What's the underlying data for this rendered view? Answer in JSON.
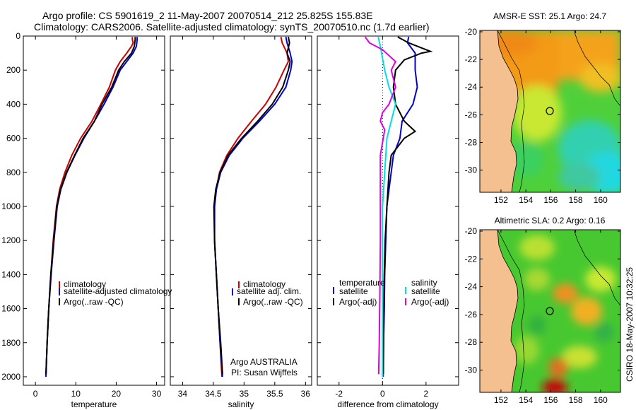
{
  "header": {
    "line1": "Argo profile: CS 5901619_2 11-May-2007 20070514_212 25.825S 155.83E",
    "line2": "Climatology: CARS2006. Satellite-adjusted climatology: synTS_20070510.nc (1.7d earlier)"
  },
  "footer": {
    "agency": "Argo AUSTRALIA",
    "pi": "PI: Susan Wijffels",
    "stamp": "CSIRO 18-May-2007 10:32:25"
  },
  "colors": {
    "climatology": "#d00000",
    "satellite": "#0000d0",
    "argo": "#000000",
    "salinity_sat": "#00e0e0",
    "salinity_argo": "#e000e0"
  },
  "chart_data": [
    {
      "type": "line",
      "id": "temperature",
      "xlabel": "temperature",
      "xlim": [
        -3,
        32
      ],
      "ylim": [
        2050,
        0
      ],
      "y_reversed": true,
      "xticks": [
        0,
        10,
        20,
        30
      ],
      "yticks": [
        0,
        200,
        400,
        600,
        800,
        1000,
        1200,
        1400,
        1600,
        1800,
        2000
      ],
      "legend": [
        "climatology",
        "satellite-adjusted climatology",
        "Argo(..raw -QC)"
      ],
      "series": [
        {
          "name": "climatology",
          "color": "#d00000",
          "points": [
            [
              24.0,
              5
            ],
            [
              24.0,
              20
            ],
            [
              24.2,
              40
            ],
            [
              23.8,
              60
            ],
            [
              22.6,
              100
            ],
            [
              21.0,
              150
            ],
            [
              19.8,
              200
            ],
            [
              18.3,
              300
            ],
            [
              16.2,
              400
            ],
            [
              14.0,
              500
            ],
            [
              11.2,
              600
            ],
            [
              9.0,
              700
            ],
            [
              7.3,
              800
            ],
            [
              6.0,
              900
            ],
            [
              5.2,
              1000
            ],
            [
              4.4,
              1200
            ],
            [
              3.8,
              1400
            ],
            [
              3.3,
              1600
            ],
            [
              2.9,
              1800
            ],
            [
              2.6,
              2000
            ]
          ]
        },
        {
          "name": "satellite-adjusted climatology",
          "color": "#0000d0",
          "points": [
            [
              25.2,
              5
            ],
            [
              25.2,
              20
            ],
            [
              25.1,
              40
            ],
            [
              25.0,
              60
            ],
            [
              24.2,
              100
            ],
            [
              22.6,
              150
            ],
            [
              21.0,
              200
            ],
            [
              19.2,
              300
            ],
            [
              17.0,
              400
            ],
            [
              14.6,
              500
            ],
            [
              12.0,
              600
            ],
            [
              9.8,
              700
            ],
            [
              7.8,
              800
            ],
            [
              6.3,
              900
            ],
            [
              5.4,
              1000
            ],
            [
              4.6,
              1200
            ],
            [
              3.9,
              1400
            ],
            [
              3.3,
              1600
            ],
            [
              2.9,
              1800
            ],
            [
              2.6,
              2000
            ]
          ]
        },
        {
          "name": "Argo(..raw -QC)",
          "color": "#000000",
          "points": [
            [
              24.7,
              5
            ],
            [
              24.7,
              20
            ],
            [
              24.6,
              40
            ],
            [
              24.5,
              60
            ],
            [
              23.8,
              100
            ],
            [
              22.0,
              150
            ],
            [
              20.6,
              200
            ],
            [
              18.9,
              300
            ],
            [
              16.5,
              400
            ],
            [
              14.6,
              500
            ],
            [
              11.8,
              600
            ],
            [
              9.7,
              700
            ],
            [
              7.7,
              800
            ],
            [
              6.2,
              900
            ],
            [
              5.3,
              1000
            ],
            [
              4.5,
              1200
            ],
            [
              3.8,
              1400
            ],
            [
              3.3,
              1600
            ],
            [
              2.9,
              1800
            ],
            [
              2.6,
              1985
            ]
          ]
        }
      ]
    },
    {
      "type": "line",
      "id": "salinity",
      "xlabel": "salinity",
      "xlim": [
        33.8,
        36.1
      ],
      "ylim": [
        2050,
        0
      ],
      "y_reversed": true,
      "xticks": [
        34,
        34.5,
        35,
        35.5,
        36
      ],
      "legend": [
        "climatology",
        "satellite adj. clim.",
        "Argo(..raw -QC)"
      ],
      "series": [
        {
          "name": "climatology",
          "color": "#d00000",
          "points": [
            [
              35.6,
              5
            ],
            [
              35.62,
              40
            ],
            [
              35.7,
              100
            ],
            [
              35.72,
              150
            ],
            [
              35.65,
              200
            ],
            [
              35.52,
              300
            ],
            [
              35.35,
              400
            ],
            [
              35.12,
              500
            ],
            [
              34.9,
              600
            ],
            [
              34.72,
              700
            ],
            [
              34.6,
              800
            ],
            [
              34.55,
              900
            ],
            [
              34.52,
              1000
            ],
            [
              34.52,
              1200
            ],
            [
              34.55,
              1400
            ],
            [
              34.58,
              1600
            ],
            [
              34.61,
              1800
            ],
            [
              34.64,
              2000
            ]
          ]
        },
        {
          "name": "satellite adj. clim.",
          "color": "#0000d0",
          "points": [
            [
              35.68,
              5
            ],
            [
              35.7,
              40
            ],
            [
              35.75,
              100
            ],
            [
              35.78,
              150
            ],
            [
              35.76,
              200
            ],
            [
              35.68,
              300
            ],
            [
              35.5,
              400
            ],
            [
              35.25,
              500
            ],
            [
              34.98,
              600
            ],
            [
              34.76,
              700
            ],
            [
              34.62,
              800
            ],
            [
              34.55,
              900
            ],
            [
              34.52,
              1000
            ],
            [
              34.52,
              1200
            ],
            [
              34.55,
              1400
            ],
            [
              34.58,
              1600
            ],
            [
              34.61,
              1800
            ],
            [
              34.65,
              2000
            ]
          ]
        },
        {
          "name": "Argo(..raw -QC)",
          "color": "#000000",
          "points": [
            [
              35.72,
              5
            ],
            [
              35.74,
              40
            ],
            [
              35.7,
              100
            ],
            [
              35.75,
              150
            ],
            [
              35.72,
              200
            ],
            [
              35.63,
              300
            ],
            [
              35.46,
              400
            ],
            [
              35.22,
              500
            ],
            [
              34.96,
              600
            ],
            [
              34.74,
              700
            ],
            [
              34.61,
              800
            ],
            [
              34.54,
              900
            ],
            [
              34.51,
              1000
            ],
            [
              34.52,
              1200
            ],
            [
              34.55,
              1400
            ],
            [
              34.58,
              1600
            ],
            [
              34.62,
              1800
            ],
            [
              34.65,
              1985
            ]
          ]
        }
      ]
    },
    {
      "type": "line",
      "id": "difference",
      "xlabel": "difference from climatology",
      "xlim": [
        -3,
        3.5
      ],
      "ylim": [
        2050,
        0
      ],
      "y_reversed": true,
      "xticks": [
        -2,
        0,
        2
      ],
      "legend_left": [
        "temperature",
        "satellite",
        "Argo(-adj)"
      ],
      "legend_right": [
        "salinity",
        "satellite",
        "Argo(-adj)"
      ],
      "series": [
        {
          "name": "temperature satellite",
          "color": "#0000d0",
          "points": [
            [
              1.2,
              5
            ],
            [
              1.15,
              40
            ],
            [
              1.5,
              100
            ],
            [
              1.5,
              200
            ],
            [
              1.6,
              300
            ],
            [
              1.4,
              400
            ],
            [
              0.9,
              500
            ],
            [
              0.8,
              600
            ],
            [
              0.5,
              700
            ],
            [
              0.4,
              800
            ],
            [
              0.3,
              900
            ],
            [
              0.2,
              1000
            ],
            [
              0.15,
              1200
            ],
            [
              0.1,
              1400
            ],
            [
              0.08,
              1600
            ],
            [
              0.05,
              1800
            ],
            [
              0.03,
              2000
            ]
          ]
        },
        {
          "name": "temperature Argo(-adj)",
          "color": "#000000",
          "points": [
            [
              0.7,
              5
            ],
            [
              1.2,
              40
            ],
            [
              2.2,
              90
            ],
            [
              1.8,
              100
            ],
            [
              1.0,
              140
            ],
            [
              0.6,
              200
            ],
            [
              0.5,
              300
            ],
            [
              0.6,
              400
            ],
            [
              1.0,
              500
            ],
            [
              1.5,
              560
            ],
            [
              1.0,
              600
            ],
            [
              0.4,
              700
            ],
            [
              0.3,
              800
            ],
            [
              0.25,
              900
            ],
            [
              0.2,
              1000
            ],
            [
              0.12,
              1200
            ],
            [
              0.08,
              1400
            ],
            [
              0.06,
              1600
            ],
            [
              0.05,
              1800
            ],
            [
              0.04,
              1985
            ]
          ]
        },
        {
          "name": "salinity satellite",
          "color": "#00e0e0",
          "points": [
            [
              -0.2,
              5
            ],
            [
              -0.1,
              60
            ],
            [
              0.1,
              200
            ],
            [
              0.3,
              300
            ],
            [
              0.6,
              400
            ],
            [
              0.4,
              500
            ],
            [
              0.2,
              600
            ],
            [
              0.1,
              800
            ],
            [
              0.0,
              1000
            ],
            [
              0.0,
              1500
            ],
            [
              0.0,
              2000
            ]
          ]
        },
        {
          "name": "salinity Argo(-adj)",
          "color": "#e000e0",
          "points": [
            [
              -0.8,
              5
            ],
            [
              -0.6,
              40
            ],
            [
              0.0,
              80
            ],
            [
              0.6,
              150
            ],
            [
              0.4,
              200
            ],
            [
              0.6,
              300
            ],
            [
              0.3,
              400
            ],
            [
              0.0,
              450
            ],
            [
              -0.1,
              500
            ],
            [
              0.1,
              550
            ],
            [
              -0.1,
              700
            ],
            [
              -0.1,
              900
            ],
            [
              -0.1,
              1200
            ],
            [
              -0.12,
              1500
            ],
            [
              -0.15,
              1800
            ],
            [
              -0.18,
              1985
            ]
          ]
        }
      ]
    },
    {
      "type": "heatmap",
      "id": "sst-map",
      "title": "AMSR-E SST: 25.1 Argo: 24.7",
      "xticks": [
        152,
        154,
        156,
        158,
        160
      ],
      "yticks": [
        -20,
        -22,
        -24,
        -26,
        -28,
        -30
      ],
      "xlim": [
        150.3,
        161.6
      ],
      "ylim": [
        -31.6,
        -19.9
      ],
      "argo_position": [
        155.83,
        -25.825
      ]
    },
    {
      "type": "heatmap",
      "id": "sla-map",
      "title": "Altimetric SLA: 0.2 Argo: 0.16",
      "xticks": [
        152,
        154,
        156,
        158,
        160
      ],
      "yticks": [
        -20,
        -22,
        -24,
        -26,
        -28,
        -30
      ],
      "xlim": [
        150.3,
        161.6
      ],
      "ylim": [
        -31.6,
        -19.9
      ],
      "argo_position": [
        155.83,
        -25.825
      ]
    }
  ]
}
